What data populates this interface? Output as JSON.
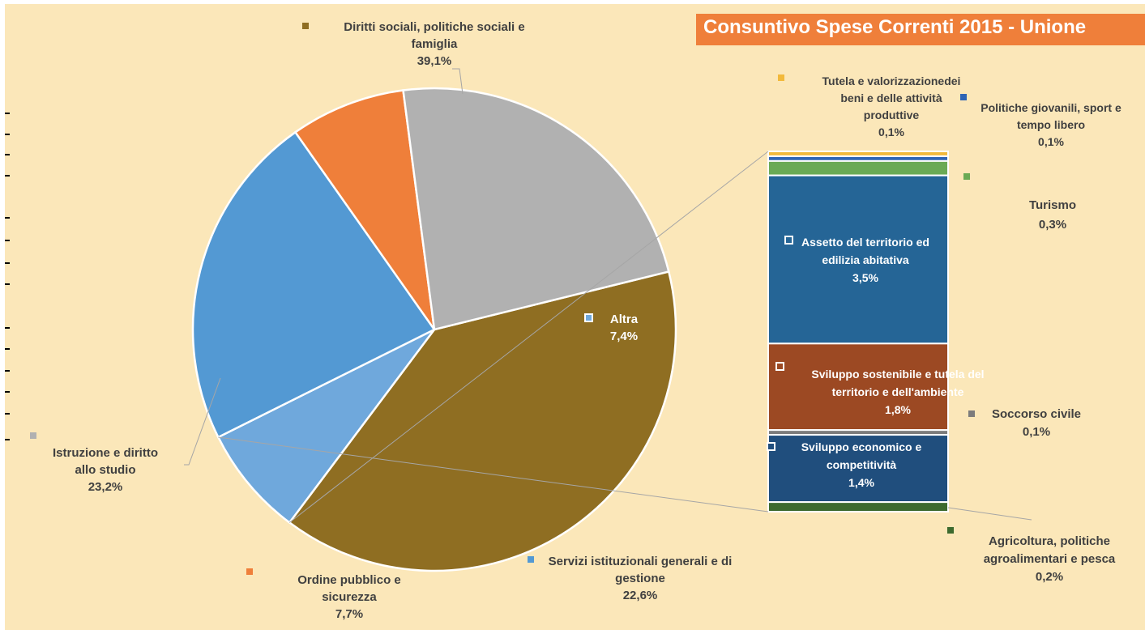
{
  "title": "Consuntivo Spese Correnti  2015 - Unione",
  "chart_data": {
    "type": "pie",
    "subtype": "bar-of-pie",
    "pie": [
      {
        "label": "Diritti sociali, politiche sociali e famiglia",
        "value": 39.1,
        "value_label": "39,1%",
        "color": "#8f6e22"
      },
      {
        "label": "Altra",
        "value": 7.4,
        "value_label": "7,4%",
        "color": "#6fa8dc"
      },
      {
        "label": "Servizi istituzionali generali e di gestione",
        "value": 22.6,
        "value_label": "22,6%",
        "color": "#5399d3"
      },
      {
        "label": "Ordine pubblico e sicurezza",
        "value": 7.7,
        "value_label": "7,7%",
        "color": "#ef7f3a"
      },
      {
        "label": "Istruzione e diritto allo studio",
        "value": 23.2,
        "value_label": "23,2%",
        "color": "#b1b1b1"
      }
    ],
    "bar": [
      {
        "label": "Tutela e valorizzazionedei beni e delle attività produttive",
        "value": 0.1,
        "value_label": "0,1%",
        "color": "#f2b93b"
      },
      {
        "label": "Politiche giovanili, sport e tempo libero",
        "value": 0.1,
        "value_label": "0,1%",
        "color": "#2e64b5"
      },
      {
        "label": "Turismo",
        "value": 0.3,
        "value_label": "0,3%",
        "color": "#6aaa55"
      },
      {
        "label": "Assetto del territorio ed edilizia abitativa",
        "value": 3.5,
        "value_label": "3,5%",
        "color": "#256596"
      },
      {
        "label": "Sviluppo sostenibile e tutela del territorio e dell'ambiente",
        "value": 1.8,
        "value_label": "1,8%",
        "color": "#9c4923"
      },
      {
        "label": "Soccorso civile",
        "value": 0.1,
        "value_label": "0,1%",
        "color": "#7c7c7c"
      },
      {
        "label": "Sviluppo economico e competitività",
        "value": 1.4,
        "value_label": "1,4%",
        "color": "#204e7d"
      },
      {
        "label": "Agricoltura, politiche agroalimentari e pesca",
        "value": 0.2,
        "value_label": "0,2%",
        "color": "#3d6a2e"
      }
    ]
  }
}
